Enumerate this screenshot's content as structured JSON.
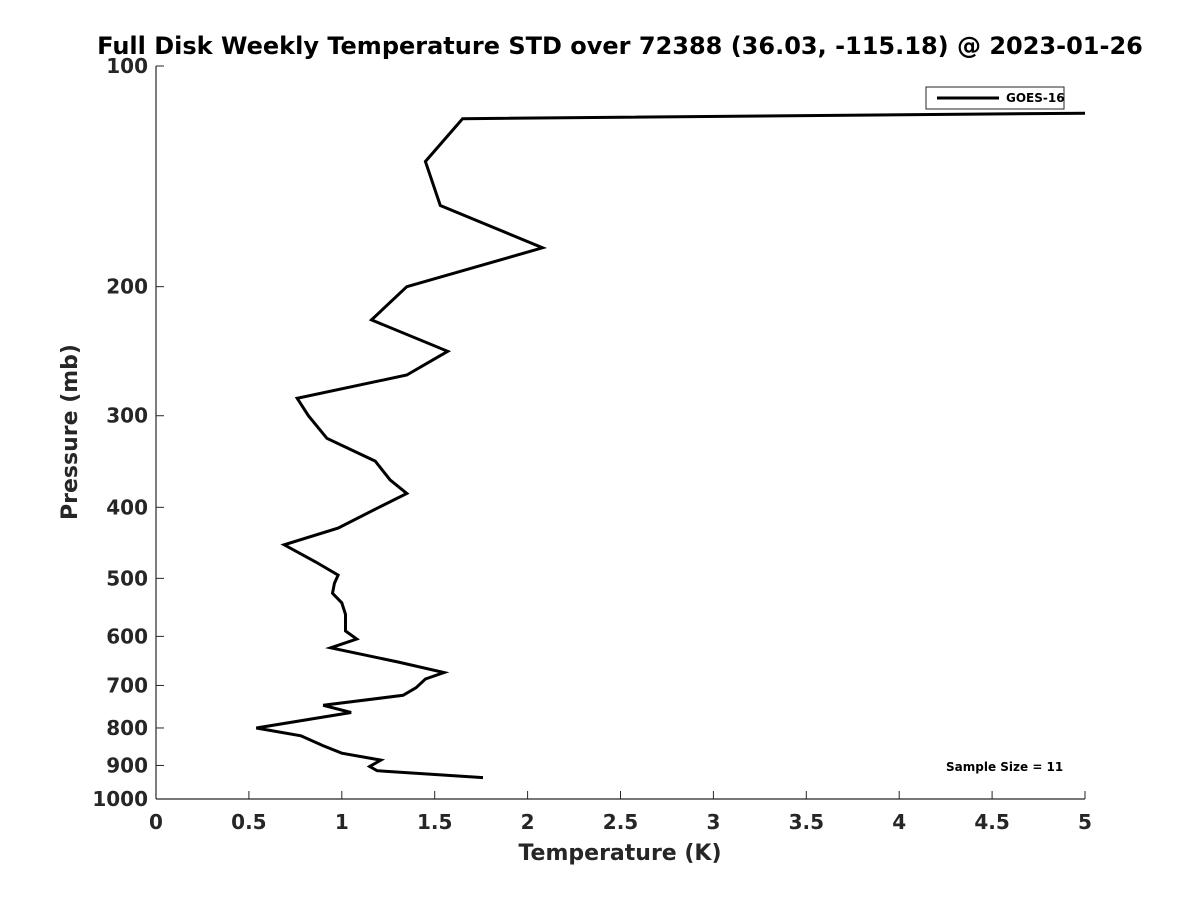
{
  "chart_data": {
    "type": "line",
    "title": "Full Disk Weekly Temperature STD over 72388 (36.03, -115.18) @ 2023-01-26",
    "xlabel": "Temperature (K)",
    "ylabel": "Pressure (mb)",
    "xlim": [
      0,
      5
    ],
    "ylim": [
      100,
      1000
    ],
    "y_scale": "log",
    "y_reversed": true,
    "grid": false,
    "legend_position": "top-right",
    "x_ticks": [
      "0",
      "0.5",
      "1",
      "1.5",
      "2",
      "2.5",
      "3",
      "3.5",
      "4",
      "4.5",
      "5"
    ],
    "y_ticks": [
      "100",
      "200",
      "300",
      "400",
      "500",
      "600",
      "700",
      "800",
      "900",
      "1000"
    ],
    "annotation": "Sample Size = 11",
    "series": [
      {
        "name": "GOES-16",
        "color": "#000000",
        "points": [
          [
            5.0,
            116
          ],
          [
            1.65,
            118
          ],
          [
            1.45,
            135
          ],
          [
            1.53,
            155
          ],
          [
            2.08,
            177
          ],
          [
            1.35,
            200
          ],
          [
            1.16,
            222
          ],
          [
            1.57,
            245
          ],
          [
            1.35,
            264
          ],
          [
            0.76,
            284
          ],
          [
            0.82,
            300
          ],
          [
            0.92,
            322
          ],
          [
            1.18,
            346
          ],
          [
            1.26,
            367
          ],
          [
            1.35,
            383
          ],
          [
            1.2,
            400
          ],
          [
            0.98,
            427
          ],
          [
            0.69,
            450
          ],
          [
            0.86,
            475
          ],
          [
            0.98,
            495
          ],
          [
            0.96,
            508
          ],
          [
            0.95,
            524
          ],
          [
            1.0,
            540
          ],
          [
            1.02,
            560
          ],
          [
            1.02,
            590
          ],
          [
            1.08,
            605
          ],
          [
            0.94,
            622
          ],
          [
            1.3,
            650
          ],
          [
            1.55,
            672
          ],
          [
            1.45,
            686
          ],
          [
            1.4,
            705
          ],
          [
            1.33,
            722
          ],
          [
            0.9,
            745
          ],
          [
            1.05,
            762
          ],
          [
            0.54,
            800
          ],
          [
            0.78,
            820
          ],
          [
            0.9,
            846
          ],
          [
            1.0,
            866
          ],
          [
            1.21,
            885
          ],
          [
            1.15,
            903
          ],
          [
            1.19,
            915
          ],
          [
            1.76,
            935
          ]
        ]
      }
    ]
  }
}
